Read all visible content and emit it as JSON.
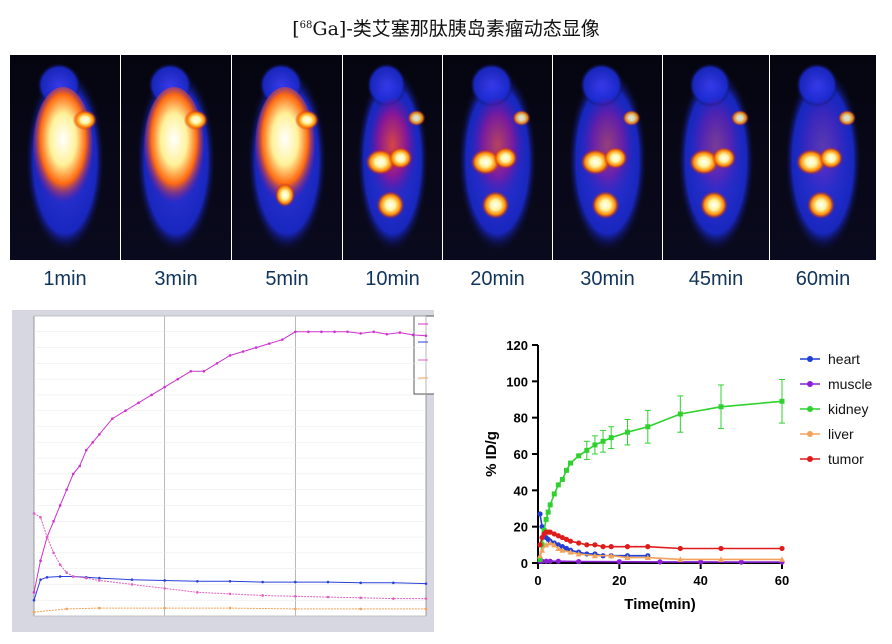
{
  "figure": {
    "title_prefix": "[",
    "title_sup": "68",
    "title_main": "Ga]-类艾塞那肽胰岛素瘤动态显像"
  },
  "timepoints": [
    "1min",
    "3min",
    "5min",
    "10min",
    "20min",
    "30min",
    "45min",
    "60min"
  ],
  "colors": {
    "heart": "#1f3fd6",
    "muscle": "#8a1fd6",
    "kidney": "#2fd12f",
    "liver": "#f2a25a",
    "tumor": "#e01b1b",
    "left_kidney": "#cc33cc",
    "left_pink": "#e060c0",
    "label_blue": "#10345a"
  },
  "chart_data": [
    {
      "type": "line",
      "series": [
        {
          "color": "#cc33cc",
          "x": [
            0,
            1,
            2,
            3,
            4,
            5,
            6,
            7,
            8,
            9,
            10,
            12,
            14,
            16,
            18,
            20,
            22,
            24,
            26,
            28,
            30,
            32,
            34,
            36,
            38,
            40,
            42,
            44,
            46,
            48,
            50,
            52,
            54,
            56,
            58,
            60
          ],
          "values": [
            3,
            7,
            10,
            12,
            14,
            16,
            18,
            19,
            21,
            22,
            23,
            25,
            26,
            27,
            28,
            29,
            30,
            31,
            31,
            32,
            33,
            33.5,
            34,
            34.5,
            35,
            36,
            36,
            36,
            36,
            36,
            35.8,
            36,
            35.7,
            35.9,
            35.6,
            35.5
          ]
        },
        {
          "color": "#2a40d8",
          "x": [
            0,
            1,
            2,
            4,
            6,
            8,
            10,
            15,
            20,
            25,
            30,
            35,
            40,
            45,
            50,
            55,
            60
          ],
          "values": [
            2,
            4.6,
            4.9,
            5,
            5,
            4.9,
            4.8,
            4.6,
            4.5,
            4.4,
            4.4,
            4.3,
            4.3,
            4.3,
            4.2,
            4.2,
            4.1
          ]
        },
        {
          "color": "#e060c0",
          "x": [
            0,
            1,
            2,
            3,
            4,
            5,
            6,
            8,
            10,
            15,
            20,
            25,
            30,
            35,
            40,
            45,
            50,
            55,
            60
          ],
          "values": [
            13,
            12.5,
            10,
            8,
            6.5,
            5.5,
            5,
            4.8,
            4.5,
            4,
            3.5,
            3,
            2.8,
            2.6,
            2.5,
            2.4,
            2.3,
            2.2,
            2.2
          ]
        },
        {
          "color": "#f2a25a",
          "x": [
            0,
            5,
            10,
            20,
            30,
            40,
            50,
            60
          ],
          "values": [
            0.5,
            0.9,
            1,
            1,
            1,
            0.9,
            0.9,
            0.9
          ]
        }
      ],
      "xlim": [
        0,
        60
      ],
      "ylim": [
        0,
        38
      ],
      "grid": true
    },
    {
      "type": "line",
      "xlabel": "Time(min)",
      "ylabel": "% ID/g",
      "xlim": [
        0,
        60
      ],
      "ylim": [
        0,
        120
      ],
      "xticks": [
        0,
        20,
        40,
        60
      ],
      "yticks": [
        0,
        20,
        40,
        60,
        80,
        100,
        120
      ],
      "legend_position": "right",
      "series": [
        {
          "name": "heart",
          "color": "#1f3fd6",
          "x": [
            0.5,
            1,
            1.5,
            2,
            2.5,
            3,
            4,
            5,
            6,
            7,
            8,
            10,
            12,
            14,
            16,
            18,
            22,
            27
          ],
          "values": [
            27,
            20,
            16,
            14,
            13,
            12,
            11,
            10,
            9,
            8,
            7,
            6,
            5,
            5,
            4,
            4,
            4,
            4
          ]
        },
        {
          "name": "muscle",
          "color": "#8a1fd6",
          "x": [
            0.5,
            1,
            2,
            3,
            5,
            10,
            20,
            30,
            40,
            50,
            60
          ],
          "values": [
            1,
            1,
            1,
            1,
            1,
            0.8,
            0.7,
            0.6,
            0.6,
            0.5,
            0.5
          ]
        },
        {
          "name": "kidney",
          "color": "#2fd12f",
          "x": [
            0.5,
            1,
            1.5,
            2,
            2.5,
            3,
            4,
            5,
            6,
            7,
            8,
            10,
            12,
            14,
            16,
            18,
            22,
            27,
            35,
            45,
            60
          ],
          "values": [
            2,
            10,
            18,
            24,
            28,
            32,
            38,
            43,
            46,
            51,
            55,
            59,
            62,
            65,
            67,
            69,
            72,
            75,
            82,
            86,
            89
          ],
          "errors": [
            0,
            0,
            0,
            0,
            0,
            0,
            0,
            0,
            0,
            0,
            0,
            0,
            5,
            5,
            6,
            6,
            7,
            9,
            10,
            12,
            12
          ]
        },
        {
          "name": "liver",
          "color": "#f2a25a",
          "x": [
            0.5,
            1,
            2,
            3,
            4,
            5,
            6,
            8,
            10,
            14,
            18,
            22,
            27,
            35,
            45,
            60
          ],
          "values": [
            4,
            7,
            10,
            11,
            10,
            8,
            7,
            6,
            5,
            4,
            4,
            3,
            3,
            2,
            2,
            2
          ]
        },
        {
          "name": "tumor",
          "color": "#e01b1b",
          "x": [
            0.5,
            1,
            1.5,
            2,
            2.5,
            3,
            4,
            5,
            6,
            7,
            8,
            10,
            12,
            14,
            16,
            18,
            22,
            27,
            35,
            45,
            60
          ],
          "values": [
            10,
            14,
            16,
            17,
            17,
            17,
            16,
            15,
            14,
            13,
            12,
            11,
            10,
            10,
            9,
            9,
            9,
            9,
            8,
            8,
            8
          ]
        }
      ]
    }
  ]
}
